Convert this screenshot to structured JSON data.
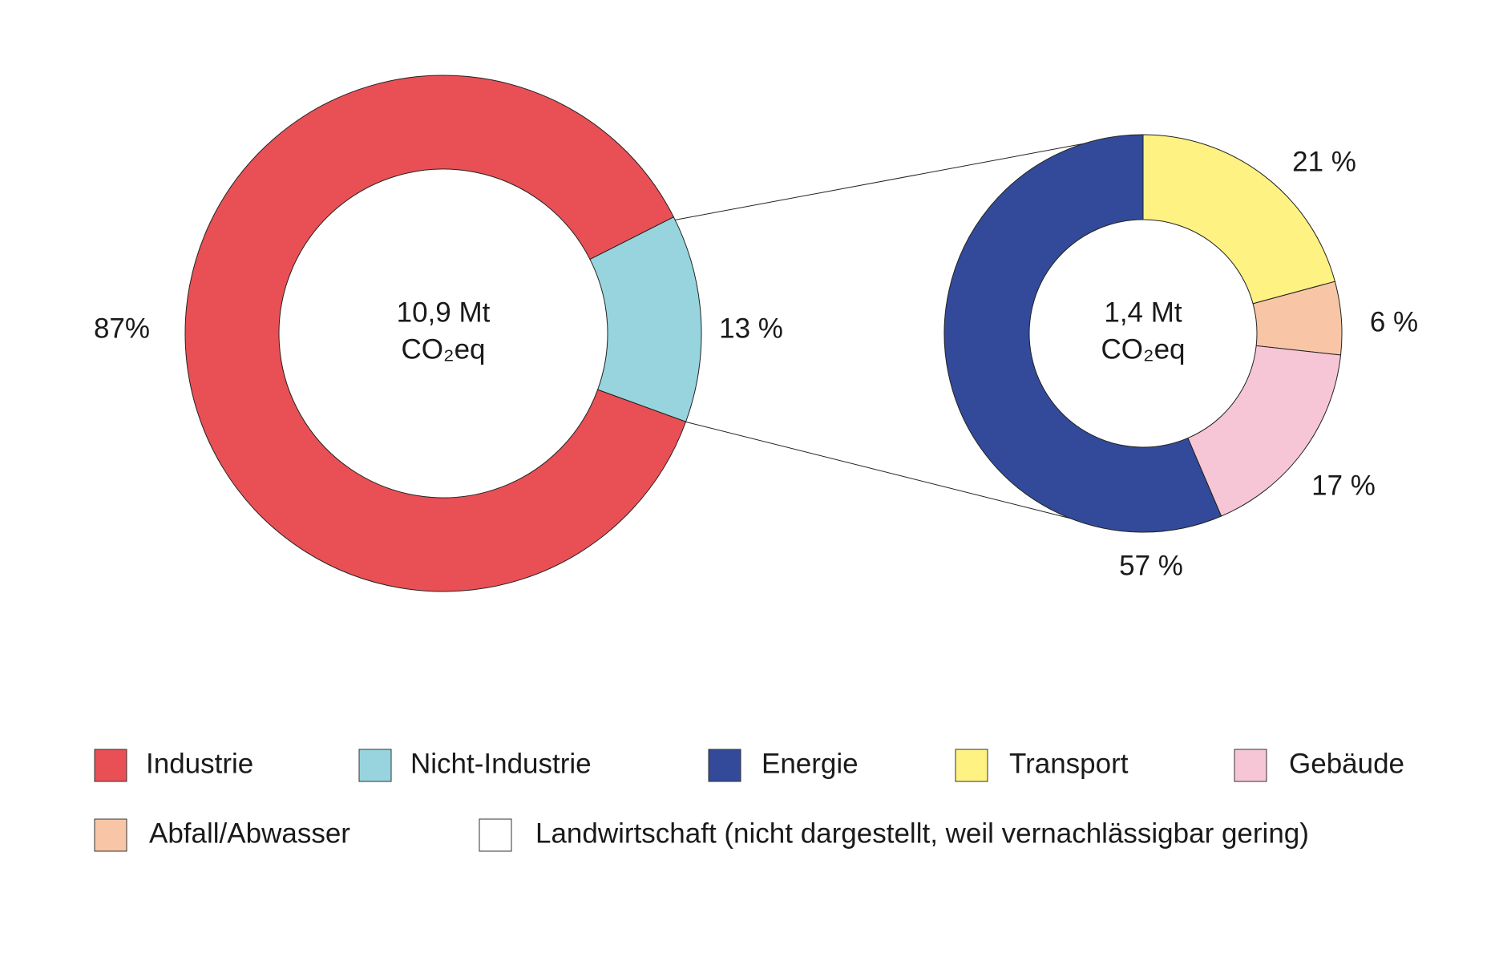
{
  "chart_data": [
    {
      "type": "donut",
      "categories": [
        "Industrie",
        "Nicht-Industrie"
      ],
      "values": [
        87,
        13
      ],
      "value_labels": [
        "87%",
        "13 %"
      ],
      "colors": [
        "#e85055",
        "#98d4de"
      ],
      "center_label": [
        "10,9 Mt",
        "CO₂eq"
      ]
    },
    {
      "type": "donut",
      "categories": [
        "Transport",
        "Abfall/Abwasser",
        "Gebäude",
        "Energie"
      ],
      "values": [
        21,
        6,
        17,
        57
      ],
      "value_labels": [
        "21 %",
        "6 %",
        "17 %",
        "57 %"
      ],
      "colors": [
        "#fef282",
        "#f8c6a6",
        "#f7c6d6",
        "#324a99"
      ],
      "center_label": [
        "1,4 Mt",
        "CO₂eq"
      ]
    }
  ],
  "legend_extra": {
    "label": "Landwirtschaft (nicht dargestellt, weil vernachlässigbar gering)",
    "color": "#ffffff"
  }
}
